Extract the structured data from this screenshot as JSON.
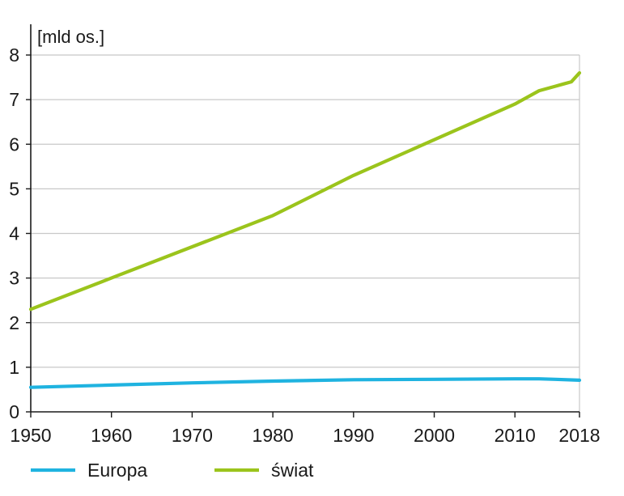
{
  "chart_data": {
    "type": "line",
    "unit_label": "[mld os.]",
    "xlim": [
      1950,
      2018
    ],
    "ylim": [
      0,
      8
    ],
    "x_ticks": [
      1950,
      1960,
      1970,
      1980,
      1990,
      2000,
      2010,
      2018
    ],
    "y_ticks": [
      0,
      1,
      2,
      3,
      4,
      5,
      6,
      7,
      8
    ],
    "grid": true,
    "legend_position": "bottom",
    "series": [
      {
        "name": "Europa",
        "color": "#1fb3e0",
        "points": [
          [
            1950,
            0.55
          ],
          [
            1960,
            0.6
          ],
          [
            1970,
            0.65
          ],
          [
            1980,
            0.69
          ],
          [
            1990,
            0.72
          ],
          [
            2000,
            0.73
          ],
          [
            2010,
            0.74
          ],
          [
            2013,
            0.74
          ],
          [
            2015,
            0.73
          ],
          [
            2018,
            0.71
          ]
        ]
      },
      {
        "name": "świat",
        "color": "#9bc41c",
        "points": [
          [
            1950,
            2.3
          ],
          [
            1960,
            3.0
          ],
          [
            1970,
            3.7
          ],
          [
            1980,
            4.4
          ],
          [
            1990,
            5.3
          ],
          [
            2000,
            6.1
          ],
          [
            2010,
            6.9
          ],
          [
            2013,
            7.2
          ],
          [
            2015,
            7.3
          ],
          [
            2016,
            7.35
          ],
          [
            2017,
            7.4
          ],
          [
            2018,
            7.6
          ]
        ]
      }
    ]
  }
}
